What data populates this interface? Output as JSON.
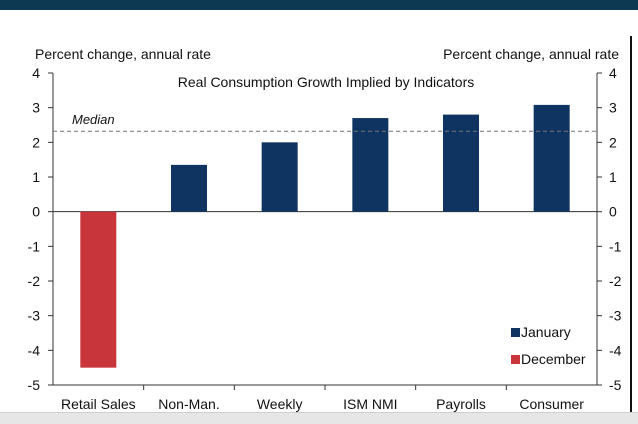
{
  "colors": {
    "header_bar": "#0d3a52",
    "january": "#0f3461",
    "december": "#c8353a",
    "median_line": "#777777",
    "axis": "#333333"
  },
  "chart_data": {
    "type": "bar",
    "title": "Real Consumption Growth Implied by Indicators",
    "ylabel_left": "Percent change, annual rate",
    "ylabel_right": "Percent change, annual rate",
    "categories": [
      "Retail Sales",
      "Non-Man.",
      "Weekly",
      "ISM NMI",
      "Payrolls",
      "Consumer"
    ],
    "series": [
      {
        "name": "January",
        "values": [
          null,
          1.35,
          2.0,
          2.7,
          2.8,
          3.08
        ]
      },
      {
        "name": "December",
        "values": [
          -4.5,
          null,
          null,
          null,
          null,
          null
        ]
      }
    ],
    "ylim": [
      -5,
      4
    ],
    "yticks": [
      "-5",
      "-4",
      "-3",
      "-2",
      "-1",
      "0",
      "1",
      "2",
      "3",
      "4"
    ],
    "median": {
      "label": "Median",
      "value": 2.32
    },
    "legend_position": "bottom-right",
    "grid": false
  }
}
